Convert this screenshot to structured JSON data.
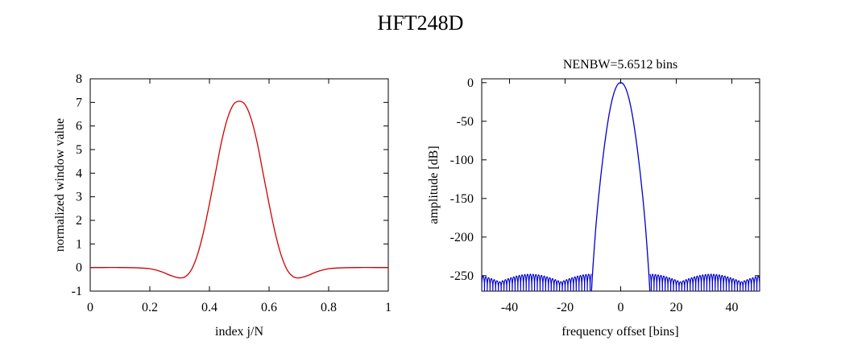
{
  "figure": {
    "title": "HFT248D"
  },
  "chart_data": [
    {
      "type": "line",
      "title": "",
      "xlabel": "index j/N",
      "ylabel": "normalized window value",
      "xlim": [
        0,
        1
      ],
      "ylim": [
        -1,
        8
      ],
      "xticks": [
        0,
        0.2,
        0.4,
        0.6,
        0.8,
        1
      ],
      "xtick_labels": [
        "0",
        "0.2",
        "0.4",
        "0.6",
        "0.8",
        "1"
      ],
      "yticks": [
        -1,
        0,
        1,
        2,
        3,
        4,
        5,
        6,
        7,
        8
      ],
      "ytick_labels": [
        "-1",
        "0",
        "1",
        "2",
        "3",
        "4",
        "5",
        "6",
        "7",
        "8"
      ],
      "grid": false,
      "series": [
        {
          "color": "#d40000",
          "x": [
            0,
            0.05,
            0.1,
            0.15,
            0.2,
            0.24,
            0.27,
            0.3,
            0.32,
            0.34,
            0.36,
            0.38,
            0.4,
            0.42,
            0.44,
            0.46,
            0.48,
            0.5,
            0.52,
            0.54,
            0.56,
            0.58,
            0.6,
            0.62,
            0.64,
            0.66,
            0.68,
            0.7,
            0.73,
            0.76,
            0.8,
            0.85,
            0.9,
            0.95,
            1
          ],
          "y": [
            0,
            0,
            0,
            -0.01,
            -0.05,
            -0.18,
            -0.34,
            -0.44,
            -0.38,
            -0.08,
            0.55,
            1.5,
            2.7,
            4.0,
            5.3,
            6.3,
            6.9,
            7.05,
            6.9,
            6.3,
            5.3,
            4.0,
            2.7,
            1.5,
            0.55,
            -0.08,
            -0.38,
            -0.44,
            -0.34,
            -0.18,
            -0.05,
            -0.01,
            0,
            0,
            0
          ]
        }
      ]
    },
    {
      "type": "line",
      "title": "NENBW=5.6512 bins",
      "xlabel": "frequency offset [bins]",
      "ylabel": "amplitude [dB]",
      "xlim": [
        -50,
        50
      ],
      "ylim": [
        -270,
        5
      ],
      "xticks": [
        -40,
        -20,
        0,
        20,
        40
      ],
      "xtick_labels": [
        "-40",
        "-20",
        "0",
        "20",
        "40"
      ],
      "yticks": [
        0,
        -50,
        -100,
        -150,
        -200,
        -250
      ],
      "ytick_labels": [
        "0",
        "-50",
        "-100",
        "-150",
        "-200",
        "-250"
      ],
      "grid": false,
      "mainlobe_halfwidth_bins": 10.5,
      "sidelobe_floor_db": -248,
      "series": [
        {
          "color": "#0000cc",
          "x": [
            -10.5,
            -10,
            -9,
            -8,
            -7,
            -6,
            -5,
            -4,
            -3,
            -2,
            -1,
            0,
            1,
            2,
            3,
            4,
            5,
            6,
            7,
            8,
            9,
            10,
            10.5
          ],
          "y": [
            -270,
            -240,
            -190,
            -150,
            -116,
            -86,
            -60,
            -38,
            -21,
            -9,
            -2,
            0,
            -2,
            -9,
            -21,
            -38,
            -60,
            -86,
            -116,
            -150,
            -190,
            -240,
            -270
          ]
        }
      ]
    }
  ]
}
